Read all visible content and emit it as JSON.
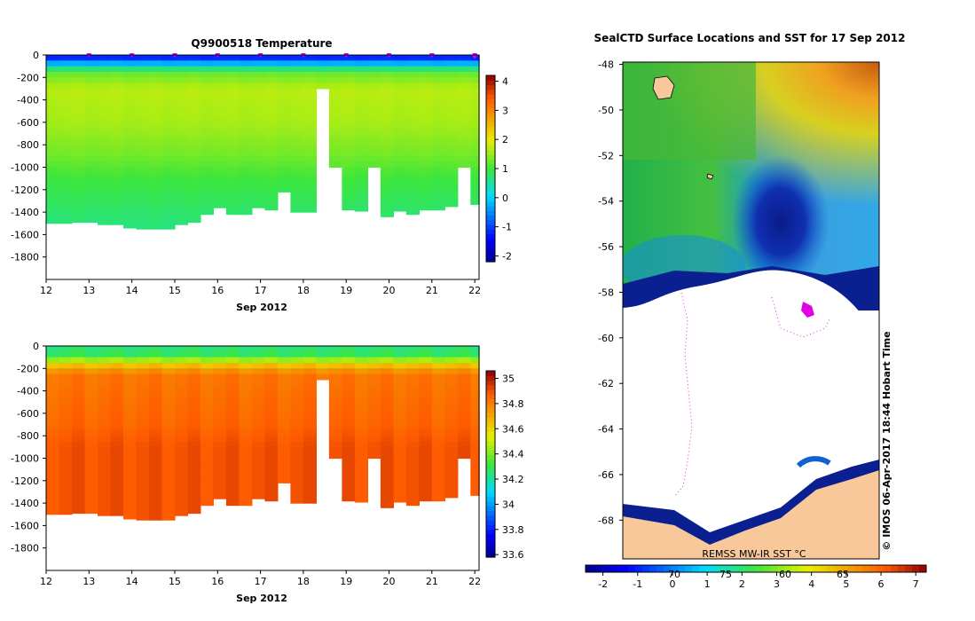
{
  "chart_data": [
    {
      "type": "heatmap",
      "title": "Q9900518  Temperature",
      "xlabel": "Sep 2012",
      "ylabel": "",
      "x_ticks": [
        "12",
        "13",
        "14",
        "15",
        "16",
        "17",
        "18",
        "19",
        "20",
        "21",
        "22"
      ],
      "y_ticks": [
        "0",
        "-200",
        "-400",
        "-600",
        "-800",
        "-1000",
        "-1200",
        "-1400",
        "-1600",
        "-1800"
      ],
      "xlim": [
        12,
        22.1
      ],
      "ylim": [
        -2000,
        0
      ],
      "colorbar_ticks": [
        "4",
        "3",
        "2",
        "1",
        "0",
        "-1",
        "-2"
      ],
      "colorbar_range": [
        -2.2,
        4.2
      ],
      "profile_times": [
        12.0,
        12.3,
        12.6,
        12.9,
        13.2,
        13.5,
        13.8,
        14.1,
        14.4,
        14.7,
        15.0,
        15.3,
        15.6,
        15.9,
        16.2,
        16.5,
        16.8,
        17.1,
        17.4,
        17.7,
        18.0,
        18.3,
        18.6,
        18.9,
        19.2,
        19.5,
        19.8,
        20.1,
        20.4,
        20.7,
        21.0,
        21.3,
        21.6,
        21.9,
        22.1
      ],
      "profile_max_depths": [
        -1500,
        -1500,
        -1490,
        -1490,
        -1510,
        -1510,
        -1540,
        -1550,
        -1550,
        -1550,
        -1510,
        -1490,
        -1420,
        -1360,
        -1420,
        -1420,
        -1360,
        -1380,
        -1220,
        -1400,
        -1400,
        -300,
        -1000,
        -1380,
        -1390,
        -1000,
        -1440,
        -1390,
        -1420,
        -1380,
        -1380,
        -1350,
        -1000,
        -1330,
        -1330
      ],
      "levels": [
        {
          "depth": 0,
          "value": -1.6
        },
        {
          "depth": -100,
          "value": 0.2
        },
        {
          "depth": -150,
          "value": 1.2
        },
        {
          "depth": -300,
          "value": 1.7
        },
        {
          "depth": -600,
          "value": 1.6
        },
        {
          "depth": -900,
          "value": 1.3
        },
        {
          "depth": -1100,
          "value": 1.0
        },
        {
          "depth": -1500,
          "value": 0.7
        }
      ],
      "markers_color": "#e000e0"
    },
    {
      "type": "heatmap",
      "title": "",
      "xlabel": "Sep 2012",
      "ylabel": "",
      "x_ticks": [
        "12",
        "13",
        "14",
        "15",
        "16",
        "17",
        "18",
        "19",
        "20",
        "21",
        "22"
      ],
      "y_ticks": [
        "0",
        "-200",
        "-400",
        "-600",
        "-800",
        "-1000",
        "-1200",
        "-1400",
        "-1600",
        "-1800"
      ],
      "xlim": [
        12,
        22.1
      ],
      "ylim": [
        -2000,
        0
      ],
      "colorbar_ticks": [
        "35",
        "34.8",
        "34.6",
        "34.4",
        "34.2",
        "34",
        "33.8",
        "33.6"
      ],
      "colorbar_range": [
        33.58,
        35.06
      ],
      "profile_times": [
        12.0,
        12.3,
        12.6,
        12.9,
        13.2,
        13.5,
        13.8,
        14.1,
        14.4,
        14.7,
        15.0,
        15.3,
        15.6,
        15.9,
        16.2,
        16.5,
        16.8,
        17.1,
        17.4,
        17.7,
        18.0,
        18.3,
        18.6,
        18.9,
        19.2,
        19.5,
        19.8,
        20.1,
        20.4,
        20.7,
        21.0,
        21.3,
        21.6,
        21.9,
        22.1
      ],
      "profile_max_depths": [
        -1500,
        -1500,
        -1490,
        -1490,
        -1510,
        -1510,
        -1540,
        -1550,
        -1550,
        -1550,
        -1510,
        -1490,
        -1420,
        -1360,
        -1420,
        -1420,
        -1360,
        -1380,
        -1220,
        -1400,
        -1400,
        -300,
        -1000,
        -1380,
        -1390,
        -1000,
        -1440,
        -1390,
        -1420,
        -1380,
        -1380,
        -1350,
        -1000,
        -1330,
        -1330
      ],
      "levels": [
        {
          "depth": 0,
          "value": 34.25
        },
        {
          "depth": -100,
          "value": 34.3
        },
        {
          "depth": -150,
          "value": 34.6
        },
        {
          "depth": -250,
          "value": 34.82
        },
        {
          "depth": -700,
          "value": 34.86
        },
        {
          "depth": -900,
          "value": 34.9
        },
        {
          "depth": -1500,
          "value": 34.9
        }
      ]
    },
    {
      "type": "heatmap",
      "title": "SealCTD Surface Locations and SST for 17 Sep 2012",
      "xlabel": "",
      "ylabel": "",
      "y_ticks": [
        "-48",
        "-50",
        "-52",
        "-54",
        "-56",
        "-58",
        "-60",
        "-62",
        "-64",
        "-66",
        "-68"
      ],
      "ylim": [
        -69.7,
        -47.9
      ],
      "colorbar_ticks": [
        "-2",
        "-1",
        "0",
        "1",
        "2",
        "3",
        "4",
        "5",
        "6",
        "7"
      ],
      "colorbar_range": [
        -2.5,
        7.3
      ],
      "colorbar_upper_ticks": [
        "70",
        "75",
        "60",
        "65"
      ],
      "source_label": "REMSS MW-IR SST °C",
      "credit": "© IMOS 06-Apr-2017 18:44 Hobart Time",
      "land_color": "#f8c89a",
      "ice_color": "#ffffff",
      "track_color": "#e000e0"
    }
  ]
}
